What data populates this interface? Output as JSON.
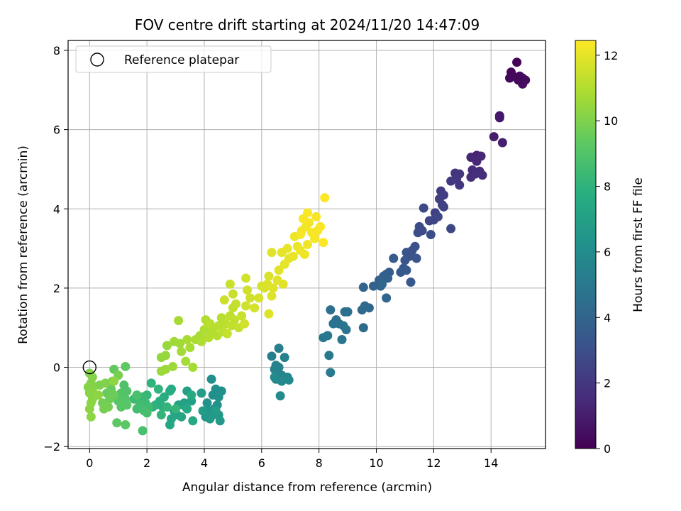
{
  "chart_data": {
    "type": "scatter",
    "title": "FOV centre drift starting at 2024/11/20 14:47:09",
    "xlabel": "Angular distance from reference (arcmin)",
    "ylabel": "Rotation from reference (arcmin)",
    "xlim": [
      -0.75,
      15.9
    ],
    "ylim": [
      -2.05,
      8.25
    ],
    "xticks": [
      0,
      2,
      4,
      6,
      8,
      10,
      12,
      14
    ],
    "yticks": [
      -2,
      0,
      2,
      4,
      6,
      8
    ],
    "grid": true,
    "legend": {
      "placement": "top-left",
      "entries": [
        "Reference platepar"
      ]
    },
    "reference_point": {
      "x": 0,
      "y": 0
    },
    "colorbar": {
      "label": "Hours from first FF file",
      "colormap": "viridis",
      "range": [
        0,
        12.45
      ],
      "ticks": [
        0,
        2,
        4,
        6,
        8,
        10,
        12
      ]
    },
    "points": [
      [
        14.9,
        7.7,
        0.1
      ],
      [
        14.7,
        7.45,
        0.2
      ],
      [
        14.65,
        7.3,
        0.25
      ],
      [
        15.0,
        7.35,
        0.3
      ],
      [
        15.1,
        7.3,
        0.35
      ],
      [
        15.2,
        7.25,
        0.4
      ],
      [
        15.1,
        7.15,
        0.45
      ],
      [
        14.95,
        7.25,
        0.3
      ],
      [
        14.75,
        7.35,
        0.2
      ],
      [
        14.3,
        6.35,
        0.8
      ],
      [
        14.3,
        6.3,
        0.85
      ],
      [
        14.1,
        5.82,
        1.0
      ],
      [
        14.4,
        5.67,
        1.1
      ],
      [
        13.5,
        5.35,
        1.3
      ],
      [
        13.3,
        5.3,
        1.35
      ],
      [
        13.65,
        5.33,
        1.4
      ],
      [
        13.5,
        5.2,
        1.45
      ],
      [
        13.35,
        4.98,
        1.5
      ],
      [
        13.6,
        4.95,
        1.55
      ],
      [
        13.3,
        4.8,
        1.6
      ],
      [
        13.7,
        4.85,
        1.65
      ],
      [
        13.45,
        4.88,
        1.7
      ],
      [
        12.75,
        4.9,
        1.9
      ],
      [
        12.9,
        4.88,
        1.95
      ],
      [
        12.8,
        4.75,
        2.0
      ],
      [
        12.9,
        4.6,
        2.05
      ],
      [
        12.6,
        4.7,
        2.1
      ],
      [
        12.25,
        4.45,
        2.2
      ],
      [
        12.35,
        4.35,
        2.25
      ],
      [
        12.2,
        4.25,
        2.3
      ],
      [
        12.05,
        3.9,
        2.4
      ],
      [
        12.3,
        4.1,
        2.45
      ],
      [
        12.35,
        4.05,
        2.5
      ],
      [
        12.0,
        3.72,
        2.55
      ],
      [
        11.85,
        3.7,
        2.6
      ],
      [
        12.15,
        3.8,
        2.65
      ],
      [
        12.6,
        3.5,
        2.7
      ],
      [
        11.65,
        4.02,
        2.8
      ],
      [
        11.5,
        3.55,
        2.85
      ],
      [
        11.6,
        3.45,
        2.9
      ],
      [
        11.45,
        3.4,
        2.95
      ],
      [
        11.9,
        3.35,
        3.0
      ],
      [
        11.35,
        3.05,
        3.1
      ],
      [
        11.25,
        2.95,
        3.15
      ],
      [
        11.05,
        2.9,
        3.2
      ],
      [
        11.15,
        2.8,
        3.25
      ],
      [
        11.4,
        2.75,
        3.3
      ],
      [
        11.0,
        2.7,
        3.35
      ],
      [
        10.95,
        2.5,
        3.4
      ],
      [
        11.2,
        2.15,
        3.45
      ],
      [
        11.05,
        2.45,
        3.5
      ],
      [
        10.85,
        2.4,
        3.55
      ],
      [
        10.6,
        2.75,
        3.65
      ],
      [
        10.45,
        2.4,
        3.7
      ],
      [
        10.35,
        2.35,
        3.75
      ],
      [
        10.25,
        2.3,
        3.8
      ],
      [
        10.1,
        2.2,
        3.85
      ],
      [
        10.4,
        2.25,
        3.9
      ],
      [
        10.15,
        2.05,
        3.95
      ],
      [
        9.9,
        2.05,
        4.0
      ],
      [
        9.55,
        2.02,
        4.05
      ],
      [
        10.35,
        1.75,
        4.1
      ],
      [
        10.2,
        2.1,
        4.15
      ],
      [
        9.75,
        1.5,
        4.25
      ],
      [
        9.6,
        1.55,
        4.3
      ],
      [
        9.5,
        1.45,
        4.35
      ],
      [
        9.55,
        1.0,
        4.4
      ],
      [
        9.0,
        1.4,
        4.5
      ],
      [
        8.9,
        1.4,
        4.55
      ],
      [
        8.4,
        1.45,
        4.6
      ],
      [
        8.6,
        1.2,
        4.65
      ],
      [
        8.7,
        1.1,
        4.7
      ],
      [
        8.5,
        1.1,
        4.75
      ],
      [
        8.85,
        1.05,
        4.8
      ],
      [
        8.95,
        0.95,
        4.85
      ],
      [
        8.8,
        0.7,
        4.9
      ],
      [
        8.3,
        0.8,
        4.95
      ],
      [
        8.15,
        0.75,
        5.0
      ],
      [
        8.35,
        0.3,
        5.05
      ],
      [
        8.4,
        -0.13,
        5.1
      ],
      [
        6.6,
        0.48,
        5.3
      ],
      [
        6.35,
        0.28,
        5.35
      ],
      [
        6.8,
        0.25,
        5.4
      ],
      [
        6.5,
        0.05,
        5.45
      ],
      [
        6.6,
        0.0,
        5.5
      ],
      [
        6.45,
        -0.05,
        5.55
      ],
      [
        6.55,
        -0.12,
        5.6
      ],
      [
        6.7,
        -0.2,
        5.65
      ],
      [
        6.9,
        -0.25,
        5.7
      ],
      [
        6.5,
        -0.3,
        5.75
      ],
      [
        6.7,
        -0.35,
        5.8
      ],
      [
        6.95,
        -0.32,
        5.85
      ],
      [
        6.45,
        -0.25,
        5.9
      ],
      [
        6.65,
        -0.72,
        5.95
      ],
      [
        4.25,
        -0.3,
        6.1
      ],
      [
        4.4,
        -0.55,
        6.15
      ],
      [
        4.6,
        -0.6,
        6.2
      ],
      [
        4.3,
        -0.7,
        6.25
      ],
      [
        4.5,
        -0.75,
        6.3
      ],
      [
        4.1,
        -0.9,
        6.35
      ],
      [
        4.45,
        -0.95,
        6.4
      ],
      [
        4.35,
        -1.05,
        6.45
      ],
      [
        4.15,
        -1.1,
        6.5
      ],
      [
        4.3,
        -1.2,
        6.55
      ],
      [
        4.05,
        -1.25,
        6.6
      ],
      [
        4.5,
        -1.2,
        6.65
      ],
      [
        4.2,
        -1.3,
        6.7
      ],
      [
        4.55,
        -1.35,
        6.75
      ],
      [
        3.95,
        -1.1,
        6.8
      ],
      [
        4.4,
        -1.1,
        6.85
      ],
      [
        3.9,
        -0.65,
        6.9
      ],
      [
        3.4,
        -0.6,
        7.0
      ],
      [
        3.55,
        -0.85,
        7.05
      ],
      [
        3.3,
        -0.9,
        7.1
      ],
      [
        3.1,
        -0.95,
        7.15
      ],
      [
        3.35,
        -1.0,
        7.2
      ],
      [
        2.95,
        -1.1,
        7.25
      ],
      [
        3.05,
        -1.2,
        7.3
      ],
      [
        3.2,
        -1.25,
        7.35
      ],
      [
        2.85,
        -1.3,
        7.4
      ],
      [
        2.8,
        -1.45,
        7.45
      ],
      [
        3.6,
        -1.35,
        7.5
      ],
      [
        3.4,
        -1.05,
        7.55
      ],
      [
        3.55,
        -0.7,
        7.6
      ],
      [
        2.8,
        -0.6,
        7.7
      ],
      [
        2.85,
        -0.55,
        7.75
      ],
      [
        2.6,
        -0.75,
        7.8
      ],
      [
        2.45,
        -0.85,
        7.85
      ],
      [
        2.55,
        -1.0,
        7.9
      ],
      [
        2.3,
        -0.95,
        7.95
      ],
      [
        2.2,
        -1.0,
        8.0
      ],
      [
        2.15,
        -0.4,
        8.05
      ],
      [
        2.4,
        -0.55,
        8.1
      ],
      [
        2.7,
        -1.0,
        8.15
      ],
      [
        2.5,
        -1.2,
        8.2
      ],
      [
        3.0,
        -1.05,
        8.25
      ],
      [
        2.0,
        -0.7,
        8.3
      ],
      [
        1.85,
        -0.75,
        8.35
      ],
      [
        1.7,
        -0.75,
        8.4
      ],
      [
        1.55,
        -0.8,
        8.45
      ],
      [
        1.95,
        -0.9,
        8.5
      ],
      [
        2.05,
        -1.0,
        8.55
      ],
      [
        1.75,
        -0.95,
        8.6
      ],
      [
        1.65,
        -1.05,
        8.65
      ],
      [
        1.9,
        -1.1,
        8.7
      ],
      [
        2.0,
        -1.15,
        8.75
      ],
      [
        1.85,
        -1.6,
        8.8
      ],
      [
        1.65,
        -0.7,
        8.85
      ],
      [
        1.2,
        -0.45,
        8.95
      ],
      [
        1.3,
        -0.6,
        9.0
      ],
      [
        1.1,
        -0.65,
        9.05
      ],
      [
        1.25,
        -0.8,
        9.1
      ],
      [
        1.0,
        -0.85,
        9.15
      ],
      [
        1.3,
        -0.95,
        9.2
      ],
      [
        1.1,
        -1.0,
        9.25
      ],
      [
        1.25,
        -1.45,
        9.3
      ],
      [
        0.95,
        -1.4,
        9.35
      ],
      [
        1.25,
        0.02,
        9.4
      ],
      [
        0.85,
        -0.05,
        9.45
      ],
      [
        0.8,
        -0.35,
        9.5
      ],
      [
        0.75,
        -0.55,
        9.55
      ],
      [
        0.6,
        -0.65,
        9.6
      ],
      [
        0.85,
        -0.7,
        9.65
      ],
      [
        0.7,
        -0.8,
        9.7
      ],
      [
        0.45,
        -0.9,
        9.75
      ],
      [
        0.65,
        -1.0,
        9.8
      ],
      [
        0.5,
        -1.05,
        9.85
      ],
      [
        1.0,
        -0.2,
        9.9
      ],
      [
        0.2,
        -0.7,
        9.95
      ],
      [
        0.35,
        -0.45,
        10.0
      ],
      [
        0.55,
        -0.4,
        10.05
      ],
      [
        0.0,
        -0.15,
        10.1
      ],
      [
        0.1,
        -0.25,
        10.12
      ],
      [
        0.05,
        -0.4,
        10.15
      ],
      [
        -0.05,
        -0.5,
        10.18
      ],
      [
        0.1,
        -0.55,
        10.2
      ],
      [
        0.0,
        -0.65,
        10.22
      ],
      [
        0.1,
        -0.8,
        10.25
      ],
      [
        0.05,
        -0.9,
        10.28
      ],
      [
        0.0,
        -1.05,
        10.3
      ],
      [
        0.05,
        -1.25,
        10.32
      ],
      [
        0.3,
        -0.7,
        10.35
      ],
      [
        0.85,
        -0.35,
        10.38
      ],
      [
        2.5,
        0.25,
        10.45
      ],
      [
        2.65,
        0.3,
        10.5
      ],
      [
        2.7,
        0.55,
        10.55
      ],
      [
        2.65,
        -0.05,
        10.6
      ],
      [
        2.5,
        -0.1,
        10.62
      ],
      [
        2.9,
        0.02,
        10.65
      ],
      [
        2.95,
        0.65,
        10.7
      ],
      [
        3.15,
        0.6,
        10.72
      ],
      [
        3.2,
        0.4,
        10.75
      ],
      [
        3.35,
        0.15,
        10.78
      ],
      [
        3.6,
        0.0,
        10.8
      ],
      [
        3.1,
        1.18,
        10.82
      ],
      [
        3.4,
        0.7,
        10.85
      ],
      [
        3.5,
        0.5,
        10.88
      ],
      [
        3.7,
        0.7,
        10.9
      ],
      [
        3.85,
        0.8,
        10.92
      ],
      [
        4.0,
        0.95,
        10.95
      ],
      [
        3.9,
        0.65,
        10.98
      ],
      [
        4.1,
        1.0,
        11.0
      ],
      [
        4.25,
        0.85,
        11.02
      ],
      [
        4.05,
        1.2,
        11.05
      ],
      [
        4.15,
        0.75,
        11.08
      ],
      [
        4.3,
        0.95,
        11.1
      ],
      [
        4.45,
        0.8,
        11.12
      ],
      [
        4.5,
        1.05,
        11.15
      ],
      [
        4.2,
        1.1,
        11.18
      ],
      [
        4.6,
        1.25,
        11.2
      ],
      [
        4.75,
        1.1,
        11.22
      ],
      [
        4.65,
        0.9,
        11.25
      ],
      [
        4.9,
        1.3,
        11.28
      ],
      [
        4.95,
        1.05,
        11.3
      ],
      [
        5.05,
        1.2,
        11.32
      ],
      [
        5.0,
        1.5,
        11.35
      ],
      [
        5.1,
        1.6,
        11.38
      ],
      [
        5.2,
        1.0,
        11.4
      ],
      [
        4.8,
        0.85,
        11.42
      ],
      [
        5.0,
        1.85,
        11.45
      ],
      [
        4.9,
        2.1,
        11.48
      ],
      [
        4.7,
        1.7,
        11.5
      ],
      [
        5.3,
        1.3,
        11.52
      ],
      [
        5.45,
        1.55,
        11.55
      ],
      [
        5.6,
        1.75,
        11.58
      ],
      [
        5.5,
        1.95,
        11.6
      ],
      [
        5.45,
        2.25,
        11.62
      ],
      [
        5.4,
        1.1,
        11.65
      ],
      [
        5.75,
        1.5,
        11.68
      ],
      [
        5.9,
        1.75,
        11.7
      ],
      [
        6.0,
        2.05,
        11.72
      ],
      [
        6.1,
        2.0,
        11.75
      ],
      [
        6.25,
        2.3,
        11.78
      ],
      [
        6.2,
        2.1,
        11.8
      ],
      [
        6.35,
        1.8,
        11.82
      ],
      [
        6.25,
        1.35,
        11.85
      ],
      [
        6.4,
        2.0,
        11.88
      ],
      [
        6.55,
        2.2,
        11.9
      ],
      [
        6.75,
        2.1,
        11.92
      ],
      [
        6.6,
        2.45,
        11.95
      ],
      [
        6.8,
        2.6,
        11.98
      ],
      [
        6.95,
        2.75,
        12.0
      ],
      [
        6.7,
        2.9,
        12.02
      ],
      [
        6.9,
        3.0,
        12.05
      ],
      [
        7.1,
        2.8,
        12.08
      ],
      [
        7.25,
        3.05,
        12.1
      ],
      [
        7.15,
        3.3,
        12.12
      ],
      [
        7.35,
        2.95,
        12.15
      ],
      [
        7.5,
        2.85,
        12.18
      ],
      [
        7.6,
        3.1,
        12.2
      ],
      [
        7.4,
        3.45,
        12.22
      ],
      [
        7.55,
        3.55,
        12.25
      ],
      [
        7.65,
        3.65,
        12.28
      ],
      [
        7.75,
        3.4,
        12.3
      ],
      [
        7.85,
        3.25,
        12.32
      ],
      [
        7.45,
        3.75,
        12.34
      ],
      [
        7.9,
        3.8,
        12.36
      ],
      [
        8.05,
        3.55,
        12.38
      ],
      [
        7.6,
        3.9,
        12.4
      ],
      [
        8.15,
        3.15,
        12.42
      ],
      [
        8.2,
        4.28,
        12.45
      ],
      [
        7.35,
        3.35,
        12.3
      ],
      [
        7.95,
        3.45,
        12.35
      ],
      [
        6.35,
        2.9,
        11.9
      ]
    ]
  }
}
